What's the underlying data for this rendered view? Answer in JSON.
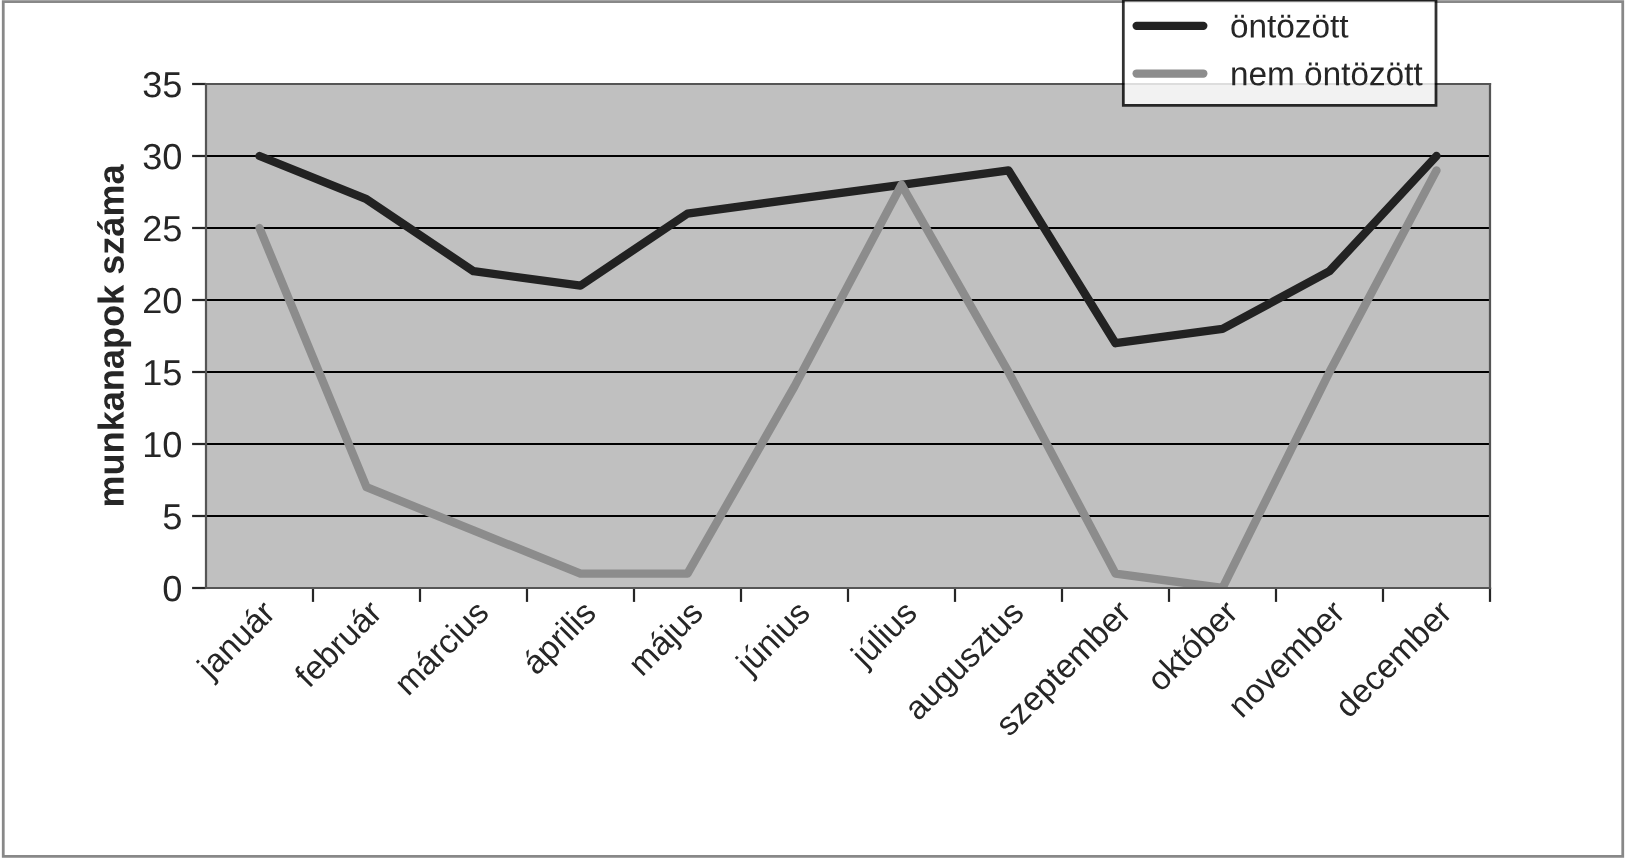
{
  "chart_data": {
    "type": "line",
    "ylabel": "munkanapok száma",
    "categories": [
      "január",
      "február",
      "március",
      "április",
      "május",
      "június",
      "július",
      "augusztus",
      "szeptember",
      "október",
      "november",
      "december"
    ],
    "series": [
      {
        "name": "öntözött",
        "color": "#222222",
        "values": [
          30,
          27,
          22,
          21,
          26,
          27,
          28,
          29,
          17,
          18,
          22,
          30
        ]
      },
      {
        "name": "nem öntözött",
        "color": "#8c8c8c",
        "values": [
          25,
          7,
          4,
          1,
          1,
          14,
          28,
          15,
          1,
          0,
          15,
          29
        ]
      }
    ],
    "ylim": [
      0,
      35
    ],
    "yticks": [
      0,
      5,
      10,
      15,
      20,
      25,
      30,
      35
    ],
    "grid": "y",
    "legend": "top right",
    "marker": "none",
    "line_style": "solid"
  }
}
